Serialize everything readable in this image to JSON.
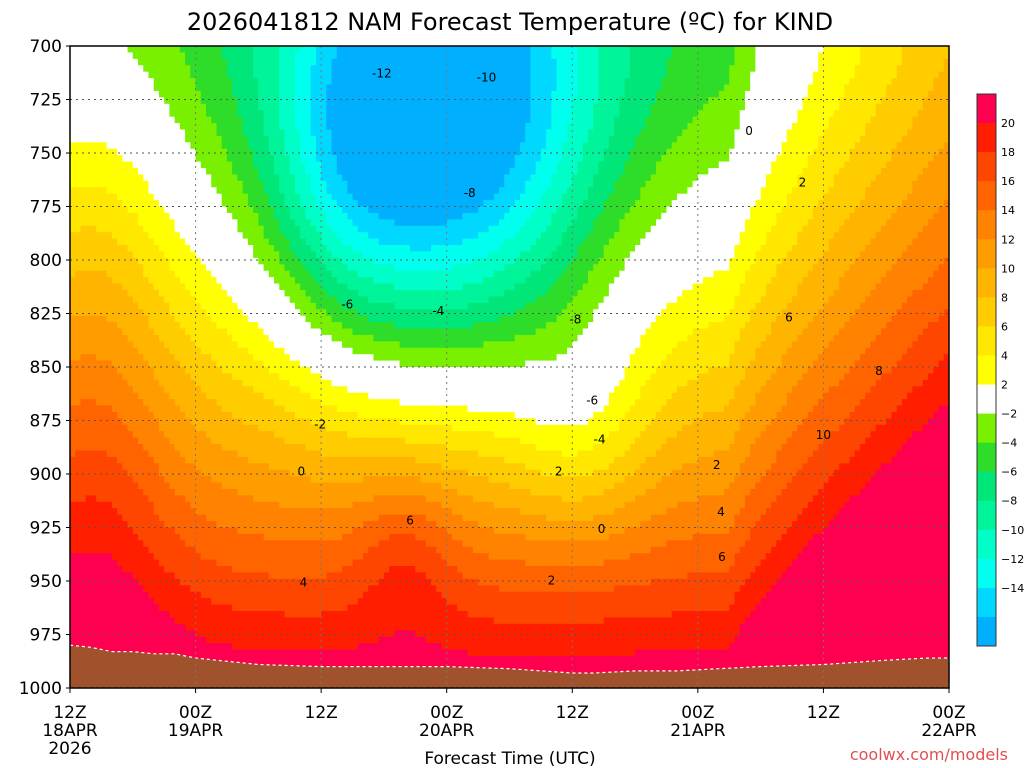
{
  "title": "2026041812 NAM Forecast Temperature (ºC) for KIND",
  "credit": "coolwx.com/models",
  "chart_data": {
    "type": "heatmap",
    "title": "2026041812 NAM Forecast Temperature (ºC) for KIND",
    "xlabel": "Forecast Time (UTC)",
    "ylabel": "",
    "x_unit": "hours since 2026041812",
    "xlim": [
      0,
      84
    ],
    "ylim": [
      700,
      1000
    ],
    "y_axis_inverted": true,
    "grid": true,
    "x_ticks": [
      {
        "hour": 0,
        "label": "12Z",
        "date": "18APR",
        "year": "2026"
      },
      {
        "hour": 12,
        "label": "00Z",
        "date": "19APR",
        "year": ""
      },
      {
        "hour": 24,
        "label": "12Z",
        "date": "",
        "year": ""
      },
      {
        "hour": 36,
        "label": "00Z",
        "date": "20APR",
        "year": ""
      },
      {
        "hour": 48,
        "label": "12Z",
        "date": "",
        "year": ""
      },
      {
        "hour": 60,
        "label": "00Z",
        "date": "21APR",
        "year": ""
      },
      {
        "hour": 72,
        "label": "12Z",
        "date": "",
        "year": ""
      },
      {
        "hour": 84,
        "label": "00Z",
        "date": "22APR",
        "year": ""
      }
    ],
    "y_ticks": [
      700,
      725,
      750,
      775,
      800,
      825,
      850,
      875,
      900,
      925,
      950,
      975,
      1000
    ],
    "colorbar": {
      "labels": [
        "20",
        "18",
        "16",
        "14",
        "12",
        "10",
        "8",
        "6",
        "4",
        "2",
        "−2",
        "−4",
        "−6",
        "−8",
        "−10",
        "−12",
        "−14"
      ],
      "levels": [
        -16,
        -14,
        -12,
        -10,
        -8,
        -6,
        -4,
        -2,
        2,
        4,
        6,
        8,
        10,
        12,
        14,
        16,
        18,
        20,
        22
      ],
      "colors": [
        "#00b0ff",
        "#00d8ff",
        "#00ffee",
        "#00ffc8",
        "#00f59a",
        "#00e678",
        "#2edc2a",
        "#78f000",
        "#ffffff",
        "#ffff00",
        "#ffe700",
        "#ffcc00",
        "#ffb400",
        "#ff9c00",
        "#ff8200",
        "#ff6400",
        "#ff4600",
        "#ff1e00",
        "#ff0050"
      ]
    },
    "contour_labels": [
      {
        "value": "-12",
        "hour": 29.8,
        "p": 713
      },
      {
        "value": "-10",
        "hour": 39.8,
        "p": 715
      },
      {
        "value": "-8",
        "hour": 38.2,
        "p": 769
      },
      {
        "value": "-8",
        "hour": 48.3,
        "p": 828
      },
      {
        "value": "-6",
        "hour": 26.5,
        "p": 821
      },
      {
        "value": "-6",
        "hour": 49.9,
        "p": 866
      },
      {
        "value": "-4",
        "hour": 35.2,
        "p": 824
      },
      {
        "value": "-4",
        "hour": 50.6,
        "p": 884
      },
      {
        "value": "-2",
        "hour": 23.9,
        "p": 877
      },
      {
        "value": "0",
        "hour": 22.1,
        "p": 899
      },
      {
        "value": "0",
        "hour": 50.8,
        "p": 926
      },
      {
        "value": "0",
        "hour": 64.9,
        "p": 740
      },
      {
        "value": "2",
        "hour": 46.7,
        "p": 899
      },
      {
        "value": "2",
        "hour": 46.0,
        "p": 950
      },
      {
        "value": "2",
        "hour": 61.8,
        "p": 896
      },
      {
        "value": "2",
        "hour": 70.0,
        "p": 764
      },
      {
        "value": "4",
        "hour": 22.3,
        "p": 951
      },
      {
        "value": "4",
        "hour": 62.2,
        "p": 918
      },
      {
        "value": "6",
        "hour": 32.5,
        "p": 922
      },
      {
        "value": "6",
        "hour": 62.3,
        "p": 939
      },
      {
        "value": "6",
        "hour": 68.7,
        "p": 827
      },
      {
        "value": "8",
        "hour": 77.3,
        "p": 852
      },
      {
        "value": "10",
        "hour": 72.0,
        "p": 882
      }
    ],
    "surface_pressure": [
      {
        "hour": 0,
        "p": 980
      },
      {
        "hour": 2,
        "p": 981
      },
      {
        "hour": 4,
        "p": 983
      },
      {
        "hour": 6,
        "p": 983
      },
      {
        "hour": 8,
        "p": 984
      },
      {
        "hour": 10,
        "p": 984
      },
      {
        "hour": 12,
        "p": 986
      },
      {
        "hour": 14,
        "p": 987
      },
      {
        "hour": 18,
        "p": 989
      },
      {
        "hour": 24,
        "p": 990
      },
      {
        "hour": 30,
        "p": 990
      },
      {
        "hour": 36,
        "p": 990
      },
      {
        "hour": 42,
        "p": 991
      },
      {
        "hour": 48,
        "p": 993
      },
      {
        "hour": 50,
        "p": 993
      },
      {
        "hour": 54,
        "p": 992
      },
      {
        "hour": 58,
        "p": 992
      },
      {
        "hour": 62,
        "p": 991
      },
      {
        "hour": 66,
        "p": 990
      },
      {
        "hour": 72,
        "p": 989
      },
      {
        "hour": 78,
        "p": 987
      },
      {
        "hour": 82,
        "p": 986
      },
      {
        "hour": 84,
        "p": 986
      }
    ]
  }
}
